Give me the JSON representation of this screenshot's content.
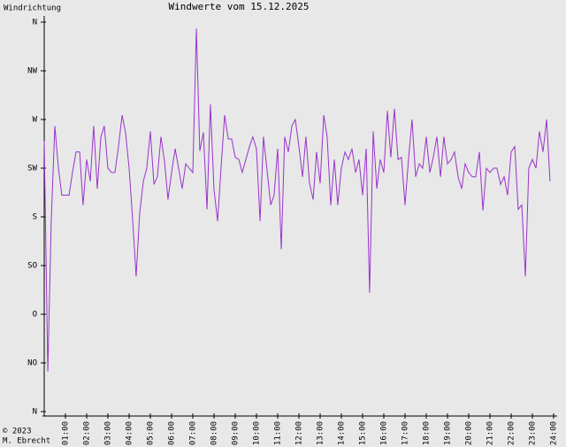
{
  "chart_data": {
    "type": "line",
    "title": "Windwerte vom 15.12.2025",
    "y_label": "Windrichtung",
    "footer": [
      "© 2023",
      "M. Ebrecht"
    ],
    "x": [
      0,
      0.17,
      0.33,
      0.5,
      0.67,
      0.83,
      1,
      1.17,
      1.33,
      1.5,
      1.67,
      1.83,
      2,
      2.17,
      2.33,
      2.5,
      2.67,
      2.83,
      3,
      3.17,
      3.33,
      3.5,
      3.67,
      3.83,
      4,
      4.17,
      4.33,
      4.5,
      4.67,
      4.83,
      5,
      5.17,
      5.33,
      5.5,
      5.67,
      5.83,
      6,
      6.17,
      6.33,
      6.5,
      6.67,
      6.83,
      7,
      7.17,
      7.33,
      7.5,
      7.67,
      7.83,
      8,
      8.17,
      8.33,
      8.5,
      8.67,
      8.83,
      9,
      9.17,
      9.33,
      9.5,
      9.67,
      9.83,
      10,
      10.17,
      10.33,
      10.5,
      10.67,
      10.83,
      11,
      11.17,
      11.33,
      11.5,
      11.67,
      11.83,
      12,
      12.17,
      12.33,
      12.5,
      12.67,
      12.83,
      13,
      13.17,
      13.33,
      13.5,
      13.67,
      13.83,
      14,
      14.17,
      14.33,
      14.5,
      14.67,
      14.83,
      15,
      15.17,
      15.33,
      15.5,
      15.67,
      15.83,
      16,
      16.17,
      16.33,
      16.5,
      16.67,
      16.83,
      17,
      17.17,
      17.33,
      17.5,
      17.67,
      17.83,
      18,
      18.17,
      18.33,
      18.5,
      18.67,
      18.83,
      19,
      19.17,
      19.33,
      19.5,
      19.67,
      19.83,
      20,
      20.17,
      20.33,
      20.5,
      20.67,
      20.83,
      21,
      21.17,
      21.33,
      21.5,
      21.67,
      21.83,
      22,
      22.17,
      22.33,
      22.5,
      22.67,
      22.83,
      23,
      23.17,
      23.33,
      23.5,
      23.67,
      23.83
    ],
    "series": [
      {
        "name": "Windrichtung",
        "color": "#9933cc",
        "values": [
          250,
          37,
          176,
          264,
          225,
          200,
          200,
          200,
          221,
          240,
          240,
          191,
          233,
          213,
          264,
          206,
          254,
          264,
          225,
          221,
          221,
          245,
          274,
          258,
          225,
          176,
          125,
          184,
          213,
          225,
          259,
          210,
          217,
          254,
          231,
          196,
          221,
          243,
          225,
          206,
          229,
          225,
          221,
          354,
          241,
          258,
          187,
          284,
          205,
          176,
          225,
          274,
          252,
          252,
          235,
          233,
          221,
          233,
          245,
          254,
          243,
          176,
          254,
          223,
          191,
          200,
          243,
          150,
          254,
          240,
          264,
          270,
          245,
          217,
          254,
          211,
          196,
          240,
          211,
          274,
          254,
          191,
          233,
          191,
          225,
          240,
          233,
          243,
          221,
          233,
          200,
          243,
          110,
          259,
          206,
          233,
          221,
          278,
          235,
          280,
          233,
          235,
          191,
          235,
          270,
          217,
          229,
          225,
          254,
          221,
          235,
          254,
          217,
          254,
          229,
          233,
          240,
          217,
          206,
          229,
          221,
          217,
          217,
          240,
          186,
          225,
          221,
          225,
          225,
          210,
          217,
          200,
          240,
          245,
          187,
          191,
          125,
          225,
          233,
          225,
          259,
          240,
          270,
          213
        ]
      }
    ],
    "xlim": [
      0,
      24
    ],
    "xticks": [
      {
        "value": 1,
        "label": "01:00"
      },
      {
        "value": 2,
        "label": "02:00"
      },
      {
        "value": 3,
        "label": "03:00"
      },
      {
        "value": 4,
        "label": "04:00"
      },
      {
        "value": 5,
        "label": "05:00"
      },
      {
        "value": 6,
        "label": "06:00"
      },
      {
        "value": 7,
        "label": "07:00"
      },
      {
        "value": 8,
        "label": "08:00"
      },
      {
        "value": 9,
        "label": "09:00"
      },
      {
        "value": 10,
        "label": "10:00"
      },
      {
        "value": 11,
        "label": "11:00"
      },
      {
        "value": 12,
        "label": "12:00"
      },
      {
        "value": 13,
        "label": "13:00"
      },
      {
        "value": 14,
        "label": "14:00"
      },
      {
        "value": 15,
        "label": "15:00"
      },
      {
        "value": 16,
        "label": "16:00"
      },
      {
        "value": 17,
        "label": "17:00"
      },
      {
        "value": 18,
        "label": "18:00"
      },
      {
        "value": 19,
        "label": "19:00"
      },
      {
        "value": 20,
        "label": "20:00"
      },
      {
        "value": 21,
        "label": "21:00"
      },
      {
        "value": 22,
        "label": "22:00"
      },
      {
        "value": 23,
        "label": "23:00"
      },
      {
        "value": 24,
        "label": "24:00"
      }
    ],
    "ylim": [
      0,
      360
    ],
    "yticks": [
      {
        "value": 0,
        "label": "N"
      },
      {
        "value": 45,
        "label": "NO"
      },
      {
        "value": 90,
        "label": "O"
      },
      {
        "value": 135,
        "label": "SO"
      },
      {
        "value": 180,
        "label": "S"
      },
      {
        "value": 225,
        "label": "SW"
      },
      {
        "value": 270,
        "label": "W"
      },
      {
        "value": 315,
        "label": "NW"
      },
      {
        "value": 360,
        "label": "N"
      }
    ],
    "grid": false
  }
}
